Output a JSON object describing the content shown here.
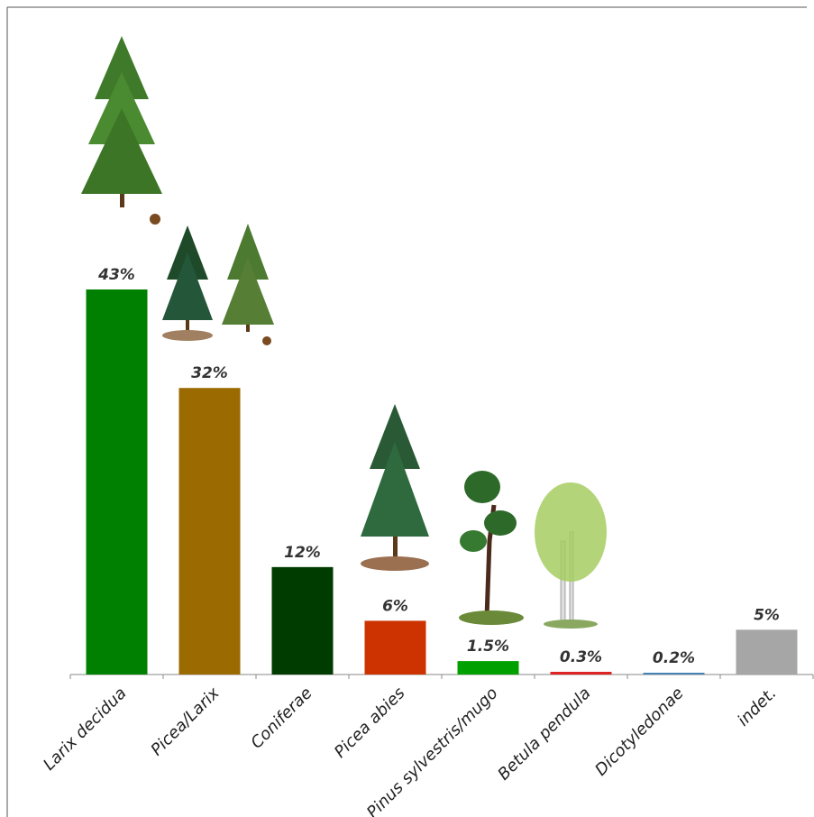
{
  "chart_data": {
    "type": "bar",
    "categories": [
      "Larix decidua",
      "Picea/Larix",
      "Coniferae",
      "Picea abies",
      "Pinus sylvestris/mugo",
      "Betula pendula",
      "Dicotyledonae",
      "indet."
    ],
    "values": [
      43,
      32,
      12,
      6,
      1.5,
      0.3,
      0.2,
      5
    ],
    "value_labels": [
      "43%",
      "32%",
      "12%",
      "6%",
      "1.5%",
      "0.3%",
      "0.2%",
      "5%"
    ],
    "colors": [
      "#008000",
      "#9b6a00",
      "#003c00",
      "#cc3300",
      "#00a000",
      "#dd2222",
      "#4682b4",
      "#a6a6a6"
    ]
  }
}
